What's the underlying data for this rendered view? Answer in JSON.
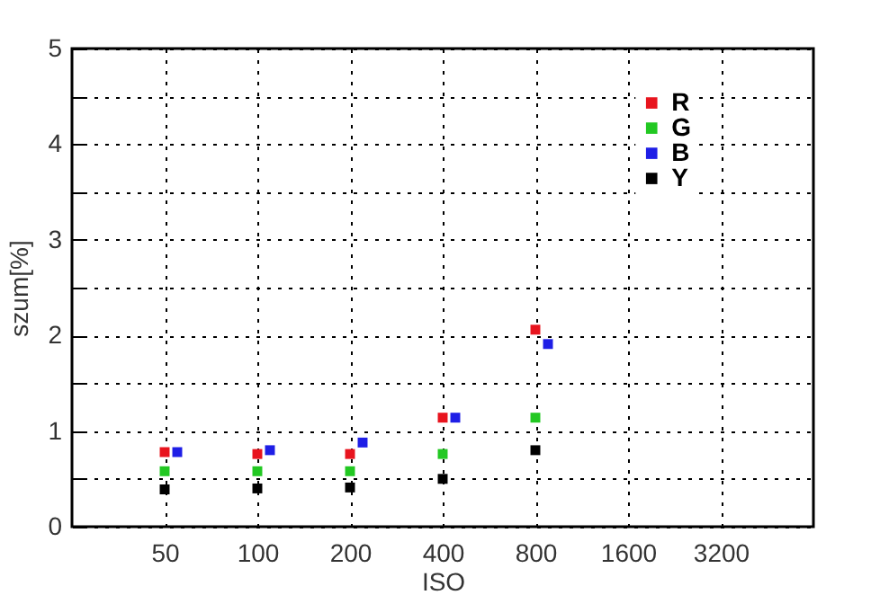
{
  "chart_data": {
    "type": "scatter",
    "xlabel": "ISO",
    "ylabel": "szum[%]",
    "categories": [
      "50",
      "100",
      "200",
      "400",
      "800",
      "1600",
      "3200"
    ],
    "ylim": [
      0,
      5
    ],
    "yticks": [
      0,
      {
        "value": 0.5,
        "label": null
      },
      1,
      {
        "value": 1.5,
        "label": null
      },
      2,
      {
        "value": 2.5,
        "label": null
      },
      3,
      {
        "value": 3.5,
        "label": null
      },
      4,
      {
        "value": 4.5,
        "label": null
      },
      5
    ],
    "grid": true,
    "legend": "top right",
    "marker": "square",
    "series": [
      {
        "name": "R",
        "color": "#e8141e",
        "values": [
          0.78,
          0.76,
          0.76,
          1.14,
          2.06,
          null,
          null
        ]
      },
      {
        "name": "G",
        "color": "#22c822",
        "values": [
          0.58,
          0.58,
          0.58,
          0.76,
          1.14,
          null,
          null
        ]
      },
      {
        "name": "B",
        "color": "#1e1ee6",
        "values": [
          0.78,
          0.8,
          0.88,
          1.14,
          1.91,
          null,
          null
        ]
      },
      {
        "name": "Y",
        "color": "#000000",
        "values": [
          0.39,
          0.4,
          0.41,
          0.5,
          0.8,
          null,
          null
        ]
      }
    ]
  }
}
